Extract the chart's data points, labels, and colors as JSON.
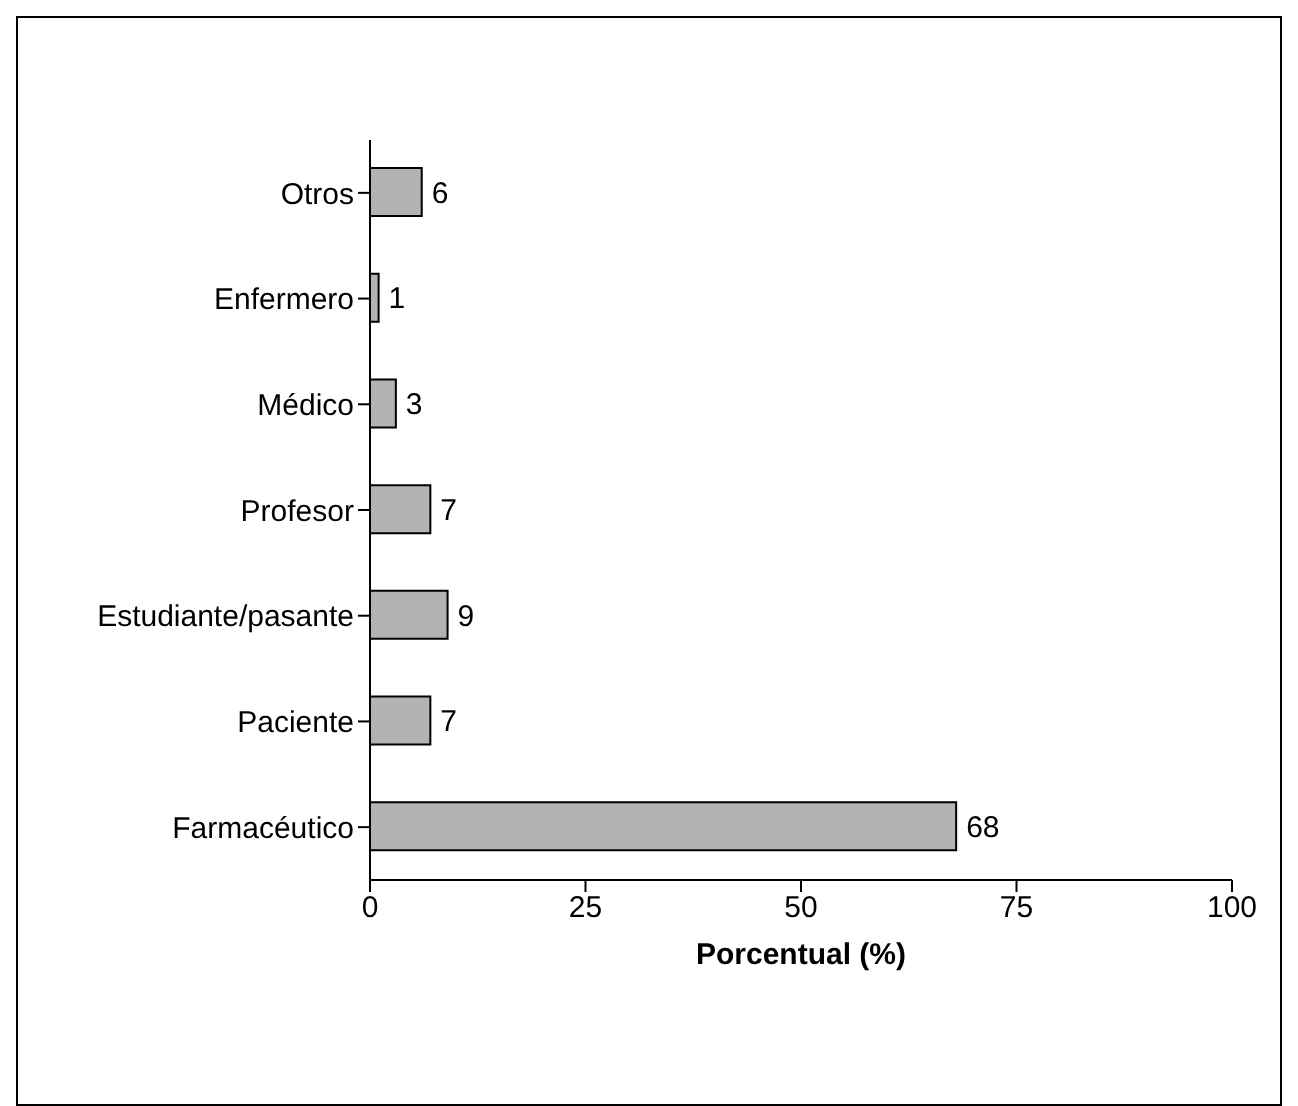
{
  "chart_data": {
    "type": "bar",
    "orientation": "horizontal",
    "xlabel": "Porcentual (%)",
    "categories": [
      "Otros",
      "Enfermero",
      "Médico",
      "Profesor",
      "Estudiante/pasante",
      "Paciente",
      "Farmacéutico"
    ],
    "values": [
      6,
      1,
      3,
      7,
      9,
      7,
      68
    ],
    "color": "#b3b3b3",
    "xlim": [
      0,
      100
    ],
    "xticks": [
      0,
      25,
      50,
      75,
      100
    ],
    "grid": false,
    "data_labels": true
  }
}
